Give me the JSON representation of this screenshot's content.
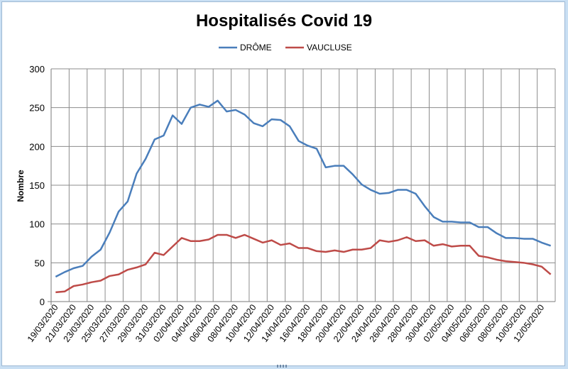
{
  "chart_data": {
    "type": "line",
    "title": "Hospitalisés Covid 19",
    "xlabel": "",
    "ylabel": "Nombre",
    "ylim": [
      0,
      300
    ],
    "yticks": [
      0,
      50,
      100,
      150,
      200,
      250,
      300
    ],
    "grid": true,
    "legend_position": "top-center",
    "x": [
      "19/03/2020",
      "20/03/2020",
      "21/03/2020",
      "22/03/2020",
      "23/03/2020",
      "24/03/2020",
      "25/03/2020",
      "26/03/2020",
      "27/03/2020",
      "28/03/2020",
      "29/03/2020",
      "30/03/2020",
      "31/03/2020",
      "01/04/2020",
      "02/04/2020",
      "03/04/2020",
      "04/04/2020",
      "05/04/2020",
      "06/04/2020",
      "07/04/2020",
      "08/04/2020",
      "09/04/2020",
      "10/04/2020",
      "11/04/2020",
      "12/04/2020",
      "13/04/2020",
      "14/04/2020",
      "15/04/2020",
      "16/04/2020",
      "17/04/2020",
      "18/04/2020",
      "19/04/2020",
      "20/04/2020",
      "21/04/2020",
      "22/04/2020",
      "23/04/2020",
      "24/04/2020",
      "25/04/2020",
      "26/04/2020",
      "27/04/2020",
      "28/04/2020",
      "29/04/2020",
      "30/04/2020",
      "01/05/2020",
      "02/05/2020",
      "03/05/2020",
      "04/05/2020",
      "05/05/2020",
      "06/05/2020",
      "07/05/2020",
      "08/05/2020",
      "09/05/2020",
      "10/05/2020",
      "11/05/2020",
      "12/05/2020",
      "13/05/2020"
    ],
    "xtick_labels": [
      "19/03/2020",
      "21/03/2020",
      "23/03/2020",
      "25/03/2020",
      "27/03/2020",
      "29/03/2020",
      "31/03/2020",
      "02/04/2020",
      "04/04/2020",
      "06/04/2020",
      "08/04/2020",
      "10/04/2020",
      "12/04/2020",
      "14/04/2020",
      "16/04/2020",
      "18/04/2020",
      "20/04/2020",
      "22/04/2020",
      "24/04/2020",
      "26/04/2020",
      "28/04/2020",
      "30/04/2020",
      "02/05/2020",
      "04/05/2020",
      "06/05/2020",
      "08/05/2020",
      "10/05/2020",
      "12/05/2020"
    ],
    "series": [
      {
        "name": "DRÔME",
        "color": "#4a7ebb",
        "values": [
          32,
          38,
          43,
          46,
          58,
          67,
          89,
          116,
          129,
          165,
          184,
          209,
          214,
          240,
          229,
          250,
          254,
          251,
          259,
          245,
          247,
          241,
          230,
          226,
          235,
          234,
          226,
          207,
          201,
          197,
          173,
          175,
          175,
          164,
          151,
          144,
          139,
          140,
          144,
          144,
          139,
          123,
          109,
          103,
          103,
          102,
          102,
          96,
          96,
          88,
          82,
          82,
          81,
          81,
          76,
          72
        ]
      },
      {
        "name": "VAUCLUSE",
        "color": "#be4b48",
        "values": [
          12,
          13,
          20,
          22,
          25,
          27,
          33,
          35,
          41,
          44,
          48,
          63,
          60,
          71,
          82,
          78,
          78,
          80,
          86,
          86,
          82,
          86,
          81,
          76,
          79,
          73,
          75,
          69,
          69,
          65,
          64,
          66,
          64,
          67,
          67,
          69,
          79,
          77,
          79,
          83,
          78,
          79,
          72,
          74,
          71,
          72,
          72,
          59,
          57,
          54,
          52,
          51,
          50,
          48,
          45,
          35
        ]
      }
    ]
  }
}
